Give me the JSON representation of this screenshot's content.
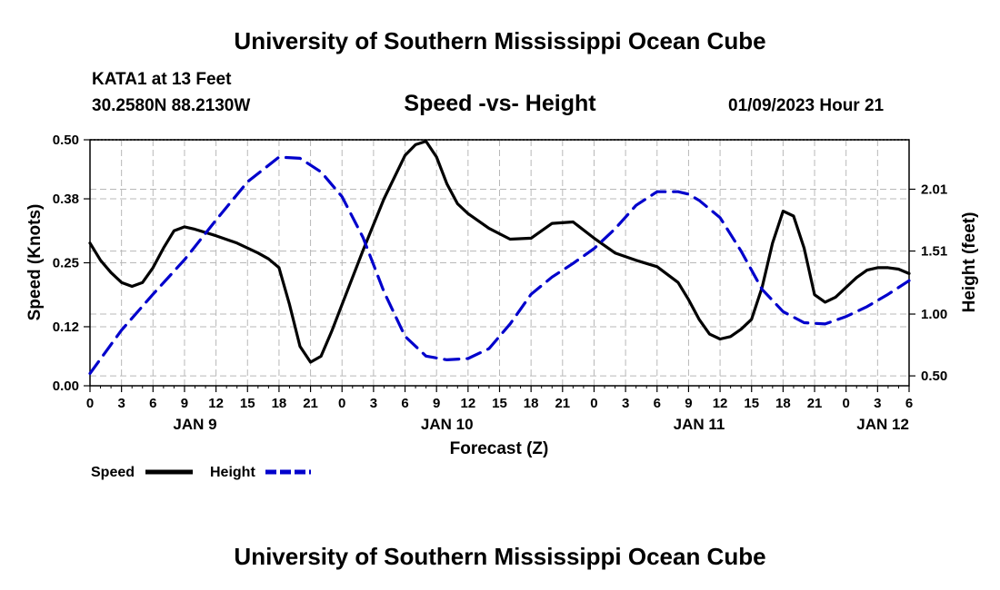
{
  "header": {
    "title": "University of Southern Mississippi Ocean Cube",
    "station": "KATA1 at 13 Feet",
    "coordinates": "30.2580N  88.2130W",
    "subtitle": "Speed -vs- Height",
    "datetime": "01/09/2023 Hour 21"
  },
  "footer": {
    "title": "University of Southern Mississippi Ocean Cube"
  },
  "chart_data": {
    "type": "line",
    "title": "Speed -vs- Height",
    "xlabel": "Forecast (Z)",
    "ylabel": "Speed (Knots)",
    "y2label": "Height (feet)",
    "grid": true,
    "x_hours_range": [
      0,
      78
    ],
    "x_ticks": {
      "hours": [
        0,
        3,
        6,
        9,
        12,
        15,
        18,
        21,
        24,
        27,
        30,
        33,
        36,
        39,
        42,
        45,
        48,
        51,
        54,
        57,
        60,
        63,
        66,
        69,
        72,
        75,
        78
      ],
      "labels": [
        "0",
        "3",
        "6",
        "9",
        "12",
        "15",
        "18",
        "21",
        "0",
        "3",
        "6",
        "9",
        "12",
        "15",
        "18",
        "21",
        "0",
        "3",
        "6",
        "9",
        "12",
        "15",
        "18",
        "21",
        "0",
        "3",
        "6"
      ]
    },
    "date_labels": [
      {
        "hour": 10,
        "label": "JAN 9"
      },
      {
        "hour": 34,
        "label": "JAN 10"
      },
      {
        "hour": 58,
        "label": "JAN 11"
      },
      {
        "hour": 75.5,
        "label": "JAN 12"
      }
    ],
    "ylim": [
      0,
      0.5
    ],
    "y_ticks": [
      0.0,
      0.12,
      0.25,
      0.38,
      0.5
    ],
    "y_tick_labels": [
      "0.00",
      "0.12",
      "0.25",
      "0.38",
      "0.50"
    ],
    "y2lim": [
      0.42,
      2.41
    ],
    "y2_ticks": [
      0.5,
      1.0,
      1.51,
      2.01
    ],
    "y2_tick_labels": [
      "0.50",
      "1.00",
      "1.51",
      "2.01"
    ],
    "series": [
      {
        "name": "Speed",
        "axis": "left",
        "color": "#000000",
        "dash": "solid",
        "x": [
          0,
          1,
          2,
          3,
          4,
          5,
          6,
          7,
          8,
          9,
          10,
          12,
          14,
          16,
          17,
          18,
          19,
          20,
          21,
          22,
          23,
          24,
          26,
          28,
          30,
          31,
          32,
          33,
          34,
          35,
          36,
          38,
          40,
          42,
          44,
          46,
          48,
          50,
          52,
          54,
          56,
          57,
          58,
          59,
          60,
          61,
          62,
          63,
          64,
          65,
          66,
          67,
          68,
          69,
          70,
          71,
          72,
          73,
          74,
          75,
          76,
          77,
          78
        ],
        "values": [
          0.29,
          0.255,
          0.23,
          0.21,
          0.202,
          0.21,
          0.24,
          0.28,
          0.315,
          0.323,
          0.318,
          0.305,
          0.29,
          0.27,
          0.258,
          0.24,
          0.165,
          0.08,
          0.048,
          0.06,
          0.11,
          0.165,
          0.275,
          0.38,
          0.468,
          0.49,
          0.497,
          0.465,
          0.41,
          0.37,
          0.35,
          0.32,
          0.298,
          0.3,
          0.33,
          0.333,
          0.3,
          0.27,
          0.255,
          0.242,
          0.21,
          0.175,
          0.135,
          0.105,
          0.095,
          0.1,
          0.115,
          0.135,
          0.2,
          0.29,
          0.355,
          0.345,
          0.28,
          0.185,
          0.17,
          0.18,
          0.2,
          0.22,
          0.235,
          0.24,
          0.24,
          0.237,
          0.228
        ]
      },
      {
        "name": "Height",
        "axis": "right",
        "color": "#0000cc",
        "dash": "dashed",
        "x": [
          0,
          3,
          6,
          9,
          12,
          15,
          18,
          20,
          22,
          24,
          26,
          28,
          30,
          32,
          34,
          36,
          38,
          40,
          42,
          44,
          46,
          48,
          50,
          52,
          54,
          56,
          57,
          58,
          60,
          62,
          64,
          66,
          68,
          70,
          72,
          74,
          76,
          78
        ],
        "values": [
          0.52,
          0.87,
          1.16,
          1.44,
          1.76,
          2.07,
          2.27,
          2.26,
          2.15,
          1.95,
          1.62,
          1.18,
          0.82,
          0.66,
          0.63,
          0.64,
          0.72,
          0.92,
          1.16,
          1.3,
          1.41,
          1.53,
          1.69,
          1.88,
          1.99,
          1.99,
          1.97,
          1.92,
          1.78,
          1.51,
          1.2,
          1.02,
          0.93,
          0.92,
          0.98,
          1.06,
          1.16,
          1.27
        ]
      }
    ],
    "legend": {
      "position": "bottom-left",
      "entries": [
        {
          "label": "Speed",
          "color": "#000000",
          "dash": "solid"
        },
        {
          "label": "Height",
          "color": "#0000cc",
          "dash": "dashed"
        }
      ]
    }
  }
}
